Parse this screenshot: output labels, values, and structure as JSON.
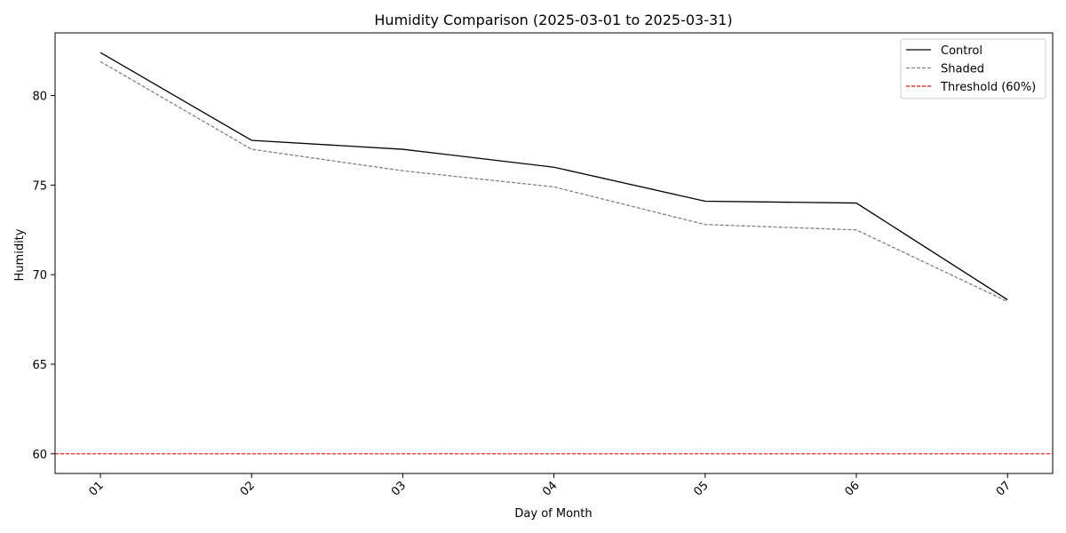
{
  "chart_data": {
    "type": "line",
    "title": "Humidity Comparison (2025-03-01 to 2025-03-31)",
    "xlabel": "Day of Month",
    "ylabel": "Humidity",
    "categories": [
      "01",
      "02",
      "03",
      "04",
      "05",
      "06",
      "07"
    ],
    "ylim": [
      58.9,
      83.5
    ],
    "yticks": [
      60,
      65,
      70,
      75,
      80
    ],
    "grid": false,
    "legend_position": "top-right",
    "series": [
      {
        "name": "Control",
        "color": "#000000",
        "style": "solid",
        "values": [
          82.4,
          77.5,
          77.0,
          76.0,
          74.1,
          74.0,
          68.6
        ]
      },
      {
        "name": "Shaded",
        "color": "#808080",
        "style": "dashed",
        "values": [
          81.9,
          77.0,
          75.8,
          74.9,
          72.8,
          72.5,
          68.5
        ]
      }
    ],
    "reference_lines": [
      {
        "name": "Threshold (60%)",
        "color": "#ff0000",
        "style": "dashed",
        "y": 60
      }
    ]
  }
}
